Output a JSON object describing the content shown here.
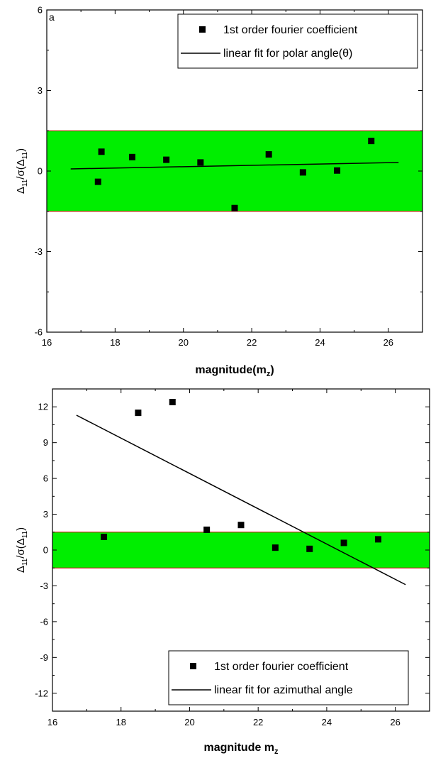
{
  "chart_data": [
    {
      "type": "scatter",
      "panel_label": "a",
      "xlabel": "magnitude(m",
      "xlabel_sub": "z",
      "xlabel_close": ")",
      "ylabel_parts": [
        "Δ",
        "11",
        "/σ(Δ",
        "11",
        ")"
      ],
      "xlim": [
        16,
        27
      ],
      "ylim": [
        -6,
        6
      ],
      "x_ticks": [
        16,
        18,
        20,
        22,
        24,
        26
      ],
      "y_ticks": [
        6,
        3,
        0,
        -3,
        -6
      ],
      "band": {
        "y_min": -1.5,
        "y_max": 1.5,
        "fill": "#00ee00",
        "edge": "#cc0000"
      },
      "series": [
        {
          "name": "1st order fourier coefficient",
          "marker": "square",
          "color": "#000000",
          "points": [
            [
              17.5,
              -0.4
            ],
            [
              17.6,
              0.72
            ],
            [
              18.5,
              0.52
            ],
            [
              19.5,
              0.42
            ],
            [
              20.5,
              0.32
            ],
            [
              21.5,
              -1.38
            ],
            [
              22.5,
              0.62
            ],
            [
              23.5,
              -0.05
            ],
            [
              24.5,
              0.02
            ],
            [
              25.5,
              1.12
            ]
          ]
        },
        {
          "name": "linear fit for polar angle(θ)",
          "type": "line",
          "color": "#000000",
          "points": [
            [
              16.7,
              0.08
            ],
            [
              26.3,
              0.32
            ]
          ]
        }
      ],
      "legend_position": "top-right"
    },
    {
      "type": "scatter",
      "xlabel": "magnitude m",
      "xlabel_sub": "z",
      "xlabel_close": "",
      "ylabel_parts": [
        "Δ",
        "11",
        "/σ(Δ",
        "11",
        ")"
      ],
      "xlim": [
        16,
        27
      ],
      "ylim": [
        -13.5,
        13.5
      ],
      "x_ticks": [
        16,
        18,
        20,
        22,
        24,
        26
      ],
      "y_ticks": [
        12,
        9,
        6,
        3,
        0,
        -3,
        -6,
        -9,
        -12
      ],
      "band": {
        "y_min": -1.5,
        "y_max": 1.5,
        "fill": "#00ee00",
        "edge": "#cc0000"
      },
      "series": [
        {
          "name": "1st order fourier coefficient",
          "marker": "square",
          "color": "#000000",
          "points": [
            [
              17.5,
              1.1
            ],
            [
              18.5,
              11.5
            ],
            [
              19.5,
              12.4
            ],
            [
              20.5,
              1.7
            ],
            [
              21.5,
              2.1
            ],
            [
              22.5,
              0.2
            ],
            [
              23.5,
              0.1
            ],
            [
              24.5,
              0.6
            ],
            [
              25.5,
              0.9
            ]
          ]
        },
        {
          "name": "linear fit for azimuthal angle",
          "type": "line",
          "color": "#000000",
          "points": [
            [
              16.7,
              11.3
            ],
            [
              26.3,
              -2.9
            ]
          ]
        }
      ],
      "legend_position": "bottom-right"
    }
  ]
}
